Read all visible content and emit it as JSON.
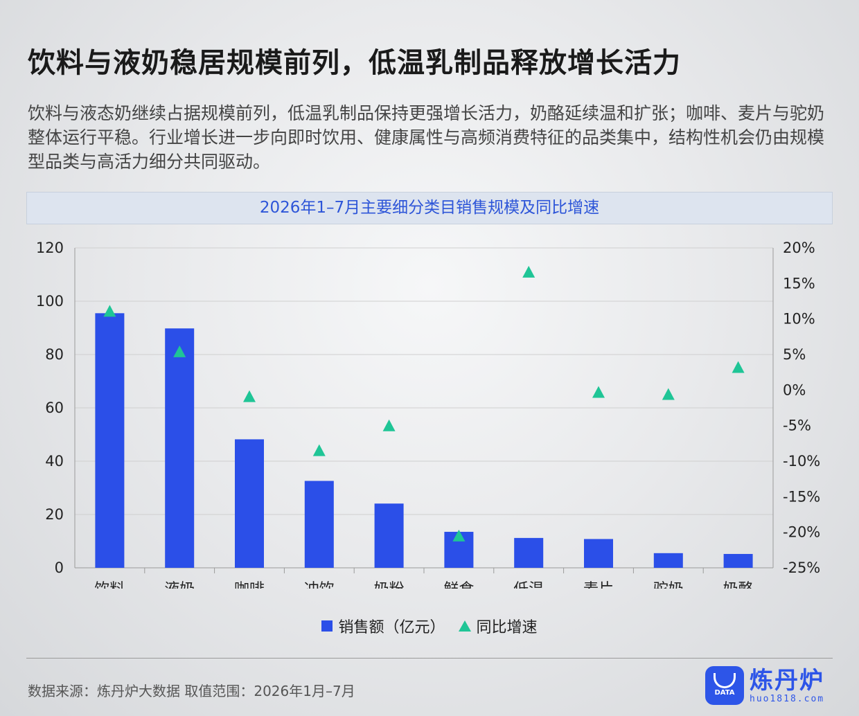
{
  "header": {
    "title": "饮料与液奶稳居规模前列，低温乳制品释放增长活力",
    "description": "饮料与液态奶继续占据规模前列，低温乳制品保持更强增长活力，奶酪延续温和扩张；咖啡、麦片与驼奶整体运行平稳。行业增长进一步向即时饮用、健康属性与高频消费特征的品类集中，结构性机会仍由规模型品类与高活力细分共同驱动。"
  },
  "chart_data": {
    "type": "bar",
    "title": "2026年1–7月主要细分类目销售规模及同比增速",
    "categories": [
      "饮料",
      "液奶",
      "咖啡",
      "冲饮",
      "奶粉",
      "鲜食",
      "低温",
      "麦片",
      "驼奶",
      "奶酪"
    ],
    "series": [
      {
        "name": "销售额（亿元）",
        "type": "bar",
        "axis": "left",
        "color": "#2b4fe8",
        "values": [
          95.5,
          89.8,
          48.2,
          32.6,
          24.1,
          13.5,
          11.2,
          10.8,
          5.5,
          5.2
        ]
      },
      {
        "name": "同比增速",
        "type": "scatter",
        "axis": "right",
        "marker": "triangle",
        "color": "#1fc596",
        "values": [
          11.0,
          5.3,
          -1.0,
          -8.6,
          -5.1,
          -20.6,
          16.5,
          -0.4,
          -0.7,
          3.1
        ]
      }
    ],
    "y_left": {
      "lim": [
        0,
        120
      ],
      "ticks": [
        "0",
        "20",
        "40",
        "60",
        "80",
        "100",
        "120"
      ]
    },
    "y_right": {
      "lim": [
        -25,
        20
      ],
      "unit": "%",
      "ticks": [
        "-25%",
        "-20%",
        "-15%",
        "-10%",
        "-5%",
        "0%",
        "5%",
        "10%",
        "15%",
        "20%"
      ]
    },
    "grid": true,
    "legend_position": "bottom"
  },
  "legend": {
    "bar_label": "销售额（亿元）",
    "marker_label": "同比增速"
  },
  "footer": {
    "source": "数据来源：炼丹炉大数据  取值范围：2026年1月–7月",
    "logo_name": "炼丹炉",
    "logo_badge": "DATA",
    "logo_url": "huo1818.com"
  }
}
